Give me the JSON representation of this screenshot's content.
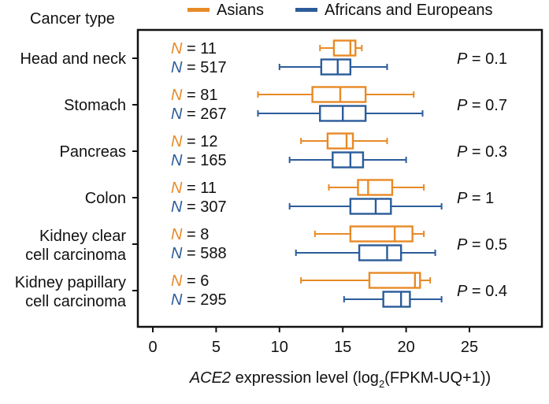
{
  "chart_data": {
    "type": "boxplot",
    "title": "",
    "category_axis_title": "Cancer type",
    "xlabel": {
      "gene": "ACE2",
      "rest": " expression level (log",
      "sub": "2",
      "tail": "(FPKM-UQ+1))"
    },
    "xlim": [
      -2,
      31
    ],
    "xticks": [
      0,
      5,
      10,
      15,
      20,
      25
    ],
    "xtick_labels": [
      "0",
      "5",
      "10",
      "15",
      "20",
      "25"
    ],
    "n_prefix": "N",
    "p_prefix": "P",
    "legend": [
      {
        "name": "Asians",
        "color": "#E88A26"
      },
      {
        "name": "Africans and Europeans",
        "color": "#2B5C9A"
      }
    ],
    "categories": [
      {
        "label_lines": [
          "Head and neck"
        ],
        "p_value": "0.1",
        "groups": [
          {
            "series": "Asians",
            "n": "11",
            "whisker_low": 13.2,
            "q1": 14.3,
            "median": 15.6,
            "q3": 16.0,
            "whisker_high": 16.5
          },
          {
            "series": "Africans and Europeans",
            "n": "517",
            "whisker_low": 10.0,
            "q1": 13.3,
            "median": 14.6,
            "q3": 15.6,
            "whisker_high": 18.5
          }
        ]
      },
      {
        "label_lines": [
          "Stomach"
        ],
        "p_value": "0.7",
        "groups": [
          {
            "series": "Asians",
            "n": "81",
            "whisker_low": 8.3,
            "q1": 12.6,
            "median": 14.8,
            "q3": 16.8,
            "whisker_high": 20.6
          },
          {
            "series": "Africans and Europeans",
            "n": "267",
            "whisker_low": 8.3,
            "q1": 13.2,
            "median": 15.0,
            "q3": 16.8,
            "whisker_high": 21.3
          }
        ]
      },
      {
        "label_lines": [
          "Pancreas"
        ],
        "p_value": "0.3",
        "groups": [
          {
            "series": "Asians",
            "n": "12",
            "whisker_low": 11.7,
            "q1": 13.8,
            "median": 15.3,
            "q3": 15.8,
            "whisker_high": 18.5
          },
          {
            "series": "Africans and Europeans",
            "n": "165",
            "whisker_low": 10.8,
            "q1": 14.2,
            "median": 15.6,
            "q3": 16.6,
            "whisker_high": 20.0
          }
        ]
      },
      {
        "label_lines": [
          "Colon"
        ],
        "p_value": "1",
        "groups": [
          {
            "series": "Asians",
            "n": "11",
            "whisker_low": 13.9,
            "q1": 16.2,
            "median": 17.0,
            "q3": 18.9,
            "whisker_high": 21.4
          },
          {
            "series": "Africans and Europeans",
            "n": "307",
            "whisker_low": 10.8,
            "q1": 15.6,
            "median": 17.6,
            "q3": 18.8,
            "whisker_high": 22.8
          }
        ]
      },
      {
        "label_lines": [
          "Kidney clear",
          "cell carcinoma"
        ],
        "p_value": "0.5",
        "groups": [
          {
            "series": "Asians",
            "n": "8",
            "whisker_low": 12.8,
            "q1": 15.6,
            "median": 19.1,
            "q3": 20.5,
            "whisker_high": 21.4
          },
          {
            "series": "Africans and Europeans",
            "n": "588",
            "whisker_low": 11.3,
            "q1": 16.3,
            "median": 18.5,
            "q3": 19.6,
            "whisker_high": 22.3
          }
        ]
      },
      {
        "label_lines": [
          "Kidney papillary",
          "cell carcinoma"
        ],
        "p_value": "0.4",
        "groups": [
          {
            "series": "Asians",
            "n": "6",
            "whisker_low": 11.7,
            "q1": 17.1,
            "median": 20.7,
            "q3": 21.1,
            "whisker_high": 21.9
          },
          {
            "series": "Africans and Europeans",
            "n": "295",
            "whisker_low": 15.1,
            "q1": 18.2,
            "median": 19.6,
            "q3": 20.3,
            "whisker_high": 22.8
          }
        ]
      }
    ]
  }
}
